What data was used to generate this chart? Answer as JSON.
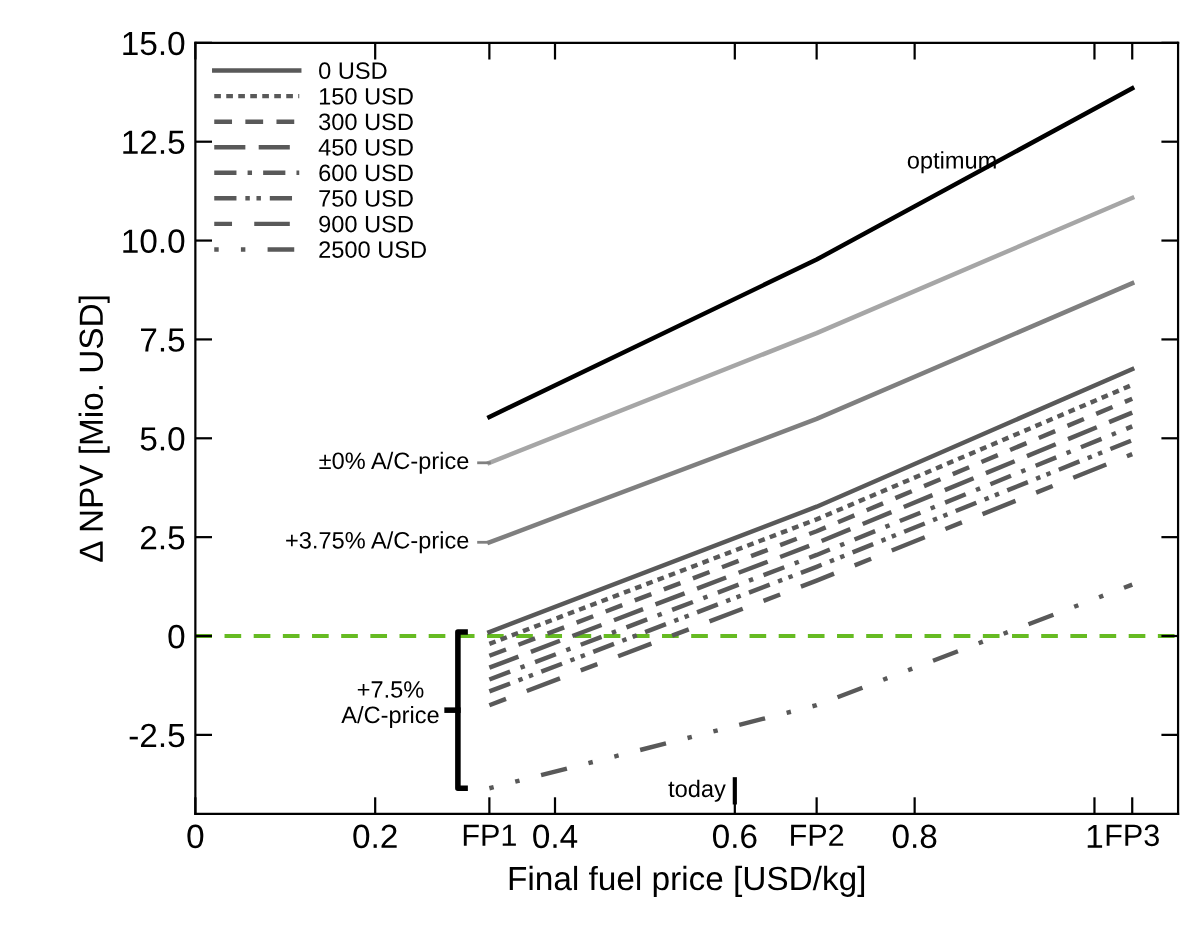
{
  "chart_data": {
    "type": "line",
    "xlabel": "Final fuel price [USD/kg]",
    "ylabel": "Δ NPV [Mio. USD]",
    "x": [
      0.327,
      0.691,
      1.042
    ],
    "xlim": [
      0,
      1.093
    ],
    "ylim": [
      -4.5,
      15.0
    ],
    "xticks": [
      {
        "value": 0,
        "label": "0"
      },
      0.2,
      {
        "value": 0.327,
        "label": "FP1"
      },
      0.4,
      0.6,
      {
        "value": 0.691,
        "label": "FP2"
      },
      0.8,
      {
        "value": 1.0,
        "label": "1"
      },
      {
        "value": 1.042,
        "label": "FP3"
      }
    ],
    "yticks": [
      -2.5,
      {
        "value": 0,
        "label": "0"
      },
      2.5,
      {
        "value": 5,
        "label": "5.0"
      },
      7.5,
      {
        "value": 10,
        "label": "10.0"
      },
      12.5,
      {
        "value": 15,
        "label": "15.0"
      }
    ],
    "grid": false,
    "legend": "top left",
    "marker": "none",
    "series": [
      {
        "color": "#000000",
        "line_style": "solid",
        "values": [
          5.54,
          9.52,
          13.85
        ]
      },
      {
        "color": "#a6a6a6",
        "line_style": "solid",
        "values": [
          4.38,
          7.66,
          11.08
        ]
      },
      {
        "color": "#7f7f7f",
        "line_style": "solid",
        "values": [
          2.37,
          5.49,
          8.92
        ]
      },
      {
        "name": "0 USD",
        "color": "#595959",
        "line_style": "solid",
        "values": [
          0.1,
          3.27,
          6.75
        ]
      },
      {
        "name": "150 USD",
        "color": "#595959",
        "line_style": "dotted",
        "values": [
          -0.2,
          2.95,
          6.35
        ]
      },
      {
        "name": "300 USD",
        "color": "#595959",
        "line_style": "dashed",
        "values": [
          -0.5,
          2.65,
          6.0
        ]
      },
      {
        "name": "450 USD",
        "color": "#595959",
        "line_style": "longdash",
        "values": [
          -0.8,
          2.35,
          5.65
        ]
      },
      {
        "name": "600 USD",
        "color": "#595959",
        "line_style": "dashdot",
        "values": [
          -1.1,
          2.05,
          5.3
        ]
      },
      {
        "name": "750 USD",
        "color": "#595959",
        "line_style": "dashdotdot",
        "values": [
          -1.4,
          1.75,
          4.95
        ]
      },
      {
        "name": "900 USD",
        "color": "#595959",
        "line_style": "loosedash",
        "values": [
          -1.75,
          1.4,
          4.6
        ]
      },
      {
        "name": "2500 USD",
        "color": "#595959",
        "line_style": "loosedashdot",
        "values": [
          -3.85,
          -1.75,
          1.3
        ]
      }
    ],
    "ref_lines": [
      {
        "axis": "y",
        "value": 0,
        "color": "#66bb22",
        "line_style": "dashed"
      },
      {
        "axis": "x",
        "value": 0.6,
        "label": "today",
        "color": "#000000",
        "line_style": "solid"
      }
    ],
    "annotations": [
      "optimum",
      "±0% A/C-price",
      "+3.75% A/C-price",
      "+7.5%\nA/C-price"
    ]
  }
}
